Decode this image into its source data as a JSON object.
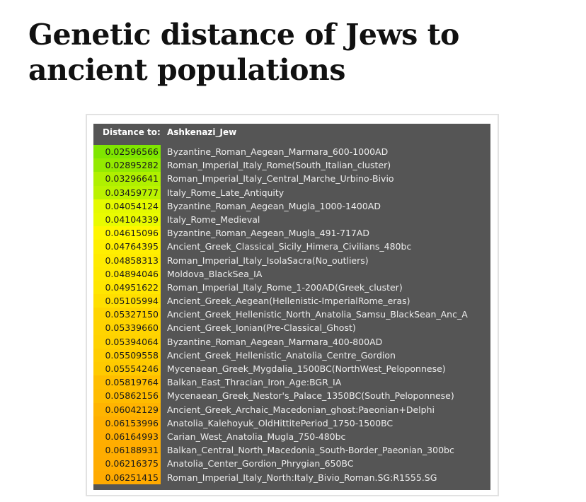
{
  "title": "Genetic distance of Jews to ancient populations",
  "header": {
    "label": "Distance to:",
    "target": "Ashkenazi_Jew"
  },
  "colors": {
    "panel_background": "#555555",
    "scale_start": "#7fe600",
    "scale_mid": "#ffff00",
    "scale_end": "#ffaa00"
  },
  "rows": [
    {
      "distance": "0.02596566",
      "population": "Byzantine_Roman_Aegean_Marmara_600-1000AD"
    },
    {
      "distance": "0.02895282",
      "population": "Roman_Imperial_Italy_Rome(South_Italian_cluster)"
    },
    {
      "distance": "0.03296641",
      "population": "Roman_Imperial_Italy_Central_Marche_Urbino-Bivio"
    },
    {
      "distance": "0.03459777",
      "population": "Italy_Rome_Late_Antiquity"
    },
    {
      "distance": "0.04054124",
      "population": "Byzantine_Roman_Aegean_Mugla_1000-1400AD"
    },
    {
      "distance": "0.04104339",
      "population": "Italy_Rome_Medieval"
    },
    {
      "distance": "0.04615096",
      "population": "Byzantine_Roman_Aegean_Mugla_491-717AD"
    },
    {
      "distance": "0.04764395",
      "population": "Ancient_Greek_Classical_Sicily_Himera_Civilians_480bc"
    },
    {
      "distance": "0.04858313",
      "population": "Roman_Imperial_Italy_IsolaSacra(No_outliers)"
    },
    {
      "distance": "0.04894046",
      "population": "Moldova_BlackSea_IA"
    },
    {
      "distance": "0.04951622",
      "population": "Roman_Imperial_Italy_Rome_1-200AD(Greek_cluster)"
    },
    {
      "distance": "0.05105994",
      "population": "Ancient_Greek_Aegean(Hellenistic-ImperialRome_eras)"
    },
    {
      "distance": "0.05327150",
      "population": "Ancient_Greek_Hellenistic_North_Anatolia_Samsu_BlackSean_Anc_A"
    },
    {
      "distance": "0.05339660",
      "population": "Ancient_Greek_Ionian(Pre-Classical_Ghost)"
    },
    {
      "distance": "0.05394064",
      "population": "Byzantine_Roman_Aegean_Marmara_400-800AD"
    },
    {
      "distance": "0.05509558",
      "population": "Ancient_Greek_Hellenistic_Anatolia_Centre_Gordion"
    },
    {
      "distance": "0.05554246",
      "population": "Mycenaean_Greek_Mygdalia_1500BC(NorthWest_Peloponnese)"
    },
    {
      "distance": "0.05819764",
      "population": "Balkan_East_Thracian_Iron_Age:BGR_IA"
    },
    {
      "distance": "0.05862156",
      "population": "Mycenaean_Greek_Nestor's_Palace_1350BC(South_Peloponnese)"
    },
    {
      "distance": "0.06042129",
      "population": "Ancient_Greek_Archaic_Macedonian_ghost:Paeonian+Delphi"
    },
    {
      "distance": "0.06153996",
      "population": "Anatolia_Kalehoyuk_OldHittitePeriod_1750-1500BC"
    },
    {
      "distance": "0.06164993",
      "population": "Carian_West_Anatolia_Mugla_750-480bc"
    },
    {
      "distance": "0.06188931",
      "population": "Balkan_Central_North_Macedonia_South-Border_Paeonian_300bc"
    },
    {
      "distance": "0.06216375",
      "population": "Anatolia_Center_Gordion_Phrygian_650BC"
    },
    {
      "distance": "0.06251415",
      "population": "Roman_Imperial_Italy_North:Italy_Bivio_Roman.SG:R1555.SG"
    }
  ]
}
